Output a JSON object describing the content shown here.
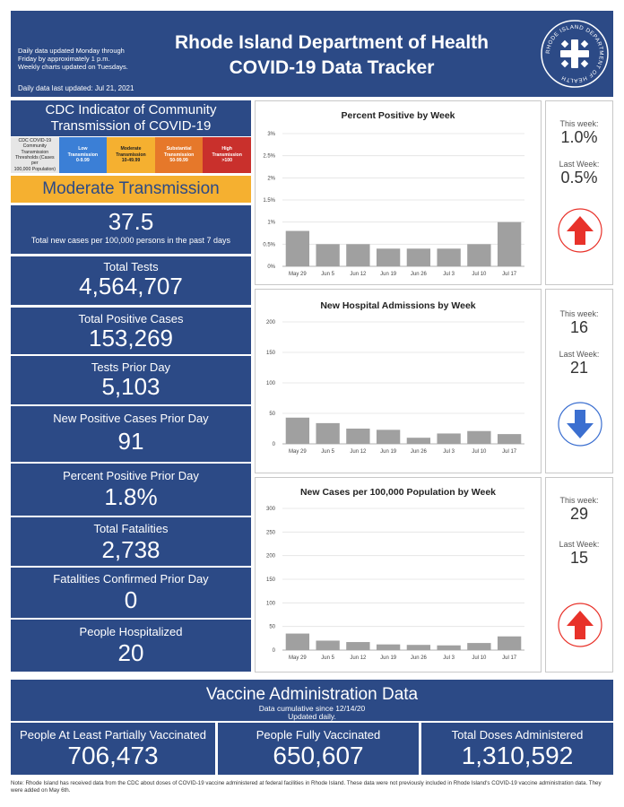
{
  "header": {
    "update_note_1": "Daily data updated Monday through",
    "update_note_2": "Friday by approximately 1 p.m.",
    "update_note_3": "Weekly charts updated on Tuesdays.",
    "last_updated": "Daily data last updated: Jul 21, 2021",
    "title_line1": "Rhode Island Department of Health",
    "title_line2": "COVID-19 Data Tracker",
    "seal_text": "RHODE ISLAND DEPARTMENT OF HEALTH"
  },
  "cdc": {
    "title_line1": "CDC Indicator of Community",
    "title_line2": "Transmission of COVID-19",
    "thresholds": [
      {
        "l1": "CDC COVID-19",
        "l2": "Community Transmission",
        "l3": "Thresholds (Cases per",
        "l4": "100,000 Population)",
        "bg": "#e6e6e6",
        "fg": "#222222"
      },
      {
        "l1": "Low",
        "l2": "Transmission",
        "l3": "0-9.99",
        "l4": "",
        "bg": "#3b7fd6",
        "fg": "#ffffff"
      },
      {
        "l1": "Moderate",
        "l2": "Transmission",
        "l3": "10-49.99",
        "l4": "",
        "bg": "#f5b030",
        "fg": "#222222"
      },
      {
        "l1": "Substantial",
        "l2": "Transmission",
        "l3": "50-99.99",
        "l4": "",
        "bg": "#e6782a",
        "fg": "#ffffff"
      },
      {
        "l1": "High",
        "l2": "Transmission",
        "l3": ">100",
        "l4": "",
        "bg": "#c9302c",
        "fg": "#ffffff"
      }
    ],
    "level": "Moderate Transmission",
    "rate_value": "37.5",
    "rate_label": "Total new cases per 100,000 persons in the past 7 days"
  },
  "stats": {
    "total_tests": {
      "label": "Total Tests",
      "value": "4,564,707"
    },
    "total_positive": {
      "label": "Total Positive Cases",
      "value": "153,269"
    },
    "tests_prior": {
      "label": "Tests Prior Day",
      "value": "5,103"
    },
    "new_positive_prior": {
      "label": "New Positive Cases Prior Day",
      "value": "91"
    },
    "percent_positive_prior": {
      "label": "Percent Positive Prior Day",
      "value": "1.8%"
    },
    "total_fatalities": {
      "label": "Total Fatalities",
      "value": "2,738"
    },
    "fatalities_prior": {
      "label": "Fatalities Confirmed Prior Day",
      "value": "0"
    },
    "hospitalized": {
      "label": "People Hospitalized",
      "value": "20"
    }
  },
  "weekly": [
    {
      "this_label": "This week:",
      "this_value": "1.0%",
      "last_label": "Last Week:",
      "last_value": "0.5%",
      "trend": "up",
      "trend_color": "#e8322a"
    },
    {
      "this_label": "This week:",
      "this_value": "16",
      "last_label": "Last Week:",
      "last_value": "21",
      "trend": "down",
      "trend_color": "#3b6fd0"
    },
    {
      "this_label": "This week:",
      "this_value": "29",
      "last_label": "Last Week:",
      "last_value": "15",
      "trend": "up",
      "trend_color": "#e8322a"
    }
  ],
  "chart_data": [
    {
      "type": "bar",
      "title": "Percent Positive by Week",
      "categories": [
        "May 29",
        "Jun 5",
        "Jun 12",
        "Jun 19",
        "Jun 26",
        "Jul 3",
        "Jul 10",
        "Jul 17"
      ],
      "values": [
        0.8,
        0.5,
        0.5,
        0.4,
        0.4,
        0.4,
        0.5,
        1.0
      ],
      "ylim": [
        0,
        3
      ],
      "yticks": [
        "0%",
        "0.5%",
        "1%",
        "1.5%",
        "2%",
        "2.5%",
        "3%"
      ],
      "ytick_values": [
        0,
        0.5,
        1,
        1.5,
        2,
        2.5,
        3
      ],
      "bar_color": "#a0a0a0",
      "grid": true
    },
    {
      "type": "bar",
      "title": "New Hospital Admissions by Week",
      "categories": [
        "May 29",
        "Jun 5",
        "Jun 12",
        "Jun 19",
        "Jun 26",
        "Jul 3",
        "Jul 10",
        "Jul 17"
      ],
      "values": [
        43,
        34,
        25,
        23,
        10,
        17,
        21,
        16
      ],
      "ylim": [
        0,
        200
      ],
      "yticks": [
        "0",
        "50",
        "100",
        "150",
        "200"
      ],
      "ytick_values": [
        0,
        50,
        100,
        150,
        200
      ],
      "bar_color": "#a0a0a0",
      "grid": true
    },
    {
      "type": "bar",
      "title": "New Cases per 100,000 Population by Week",
      "categories": [
        "May 29",
        "Jun 5",
        "Jun 12",
        "Jun 19",
        "Jun 26",
        "Jul 3",
        "Jul 10",
        "Jul 17"
      ],
      "values": [
        35,
        20,
        17,
        12,
        11,
        10,
        15,
        29
      ],
      "ylim": [
        0,
        300
      ],
      "yticks": [
        "0",
        "50",
        "100",
        "150",
        "200",
        "250",
        "300"
      ],
      "ytick_values": [
        0,
        50,
        100,
        150,
        200,
        250,
        300
      ],
      "bar_color": "#a0a0a0",
      "grid": true
    }
  ],
  "vaccine": {
    "title": "Vaccine Administration Data",
    "sub1": "Data cumulative since 12/14/20",
    "sub2": "Updated daily.",
    "partial": {
      "label": "People At Least Partially Vaccinated",
      "value": "706,473"
    },
    "full": {
      "label": "People Fully Vaccinated",
      "value": "650,607"
    },
    "doses": {
      "label": "Total Doses Administered",
      "value": "1,310,592"
    }
  },
  "footnote": "Note: Rhode Island has received data from the CDC about doses of COVID-19 vaccine administered at federal facilities in Rhode Island. These data were not previously included in Rhode Island's COVID-19 vaccine administration data. They were added on May 6th."
}
